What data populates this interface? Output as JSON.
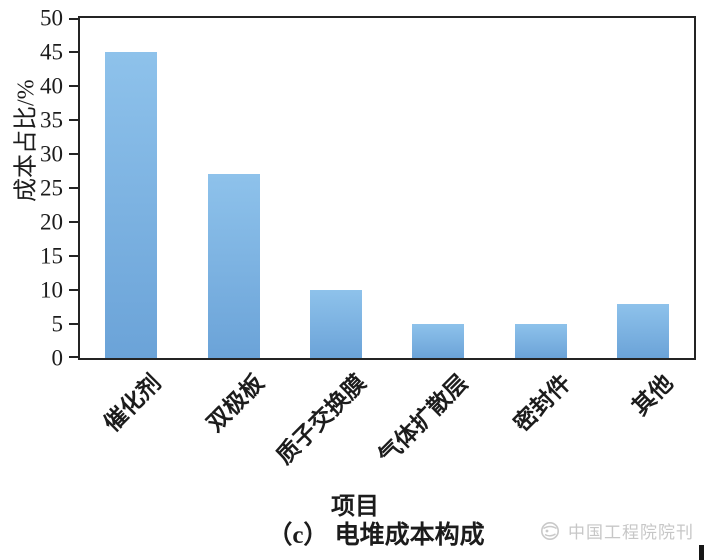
{
  "figure": {
    "caption": "（c） 电堆成本构成",
    "footer_brand": "中国工程院院刊"
  },
  "chart_data": {
    "type": "bar",
    "title": "（c） 电堆成本构成",
    "categories": [
      "催化剂",
      "双极板",
      "质子交换膜",
      "气体扩散层",
      "密封件",
      "其他"
    ],
    "values": [
      45,
      27,
      10,
      5,
      5,
      8
    ],
    "xlabel": "项目",
    "ylabel": "成本占比/%",
    "ylim": [
      0,
      50
    ],
    "ytick_step": 5,
    "yticks": [
      0,
      5,
      10,
      15,
      20,
      25,
      30,
      35,
      40,
      45,
      50
    ],
    "grid": false,
    "legend": "none",
    "bar_color_top": "#8ec2eb",
    "bar_color_bottom": "#6ba3d8",
    "axis_color": "#242424",
    "text_color": "#1c1c1c"
  }
}
